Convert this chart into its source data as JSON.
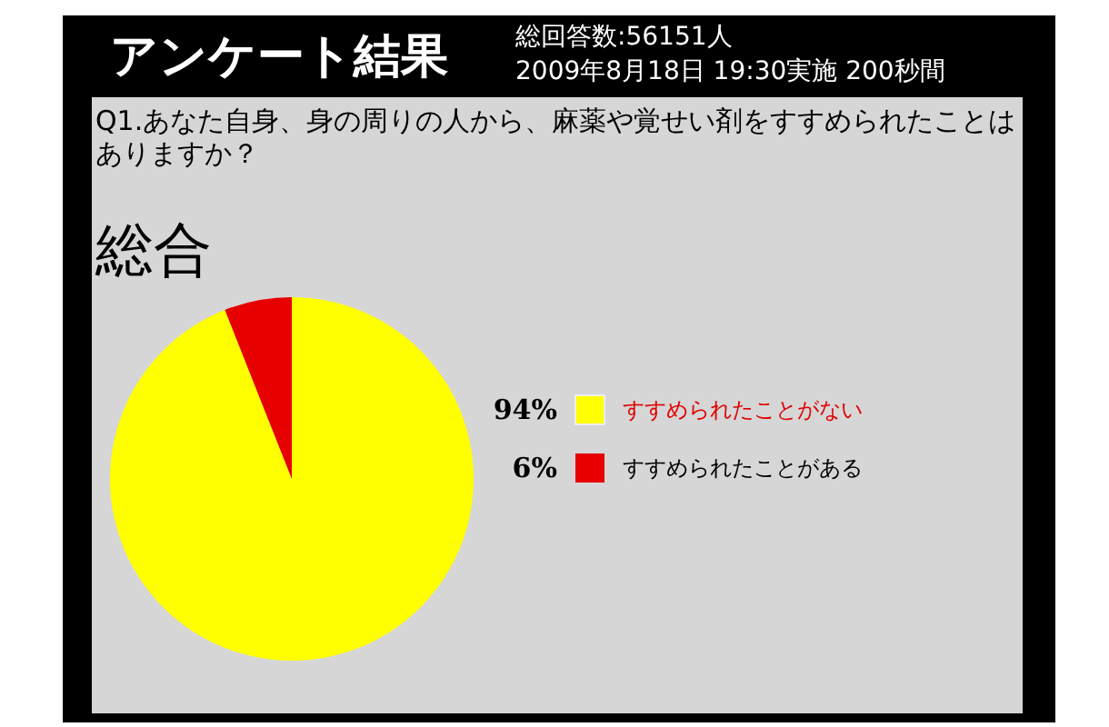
{
  "chart_data": {
    "type": "pie",
    "title": "アンケート結果",
    "subtitle": "Q1.あなた自身、身の周りの人から、麻薬や覚せい剤をすすめられたことはありますか？",
    "annotations": [
      "総回答数:56151人",
      "2009年8月18日 19:30実施 200秒間",
      "総合"
    ],
    "categories": [
      "すすめられたことがない",
      "すすめられたことがある"
    ],
    "values": [
      94,
      6
    ],
    "colors": [
      "#ffff00",
      "#e60000"
    ],
    "value_labels": [
      "94%",
      "6%"
    ],
    "legend": "right"
  }
}
